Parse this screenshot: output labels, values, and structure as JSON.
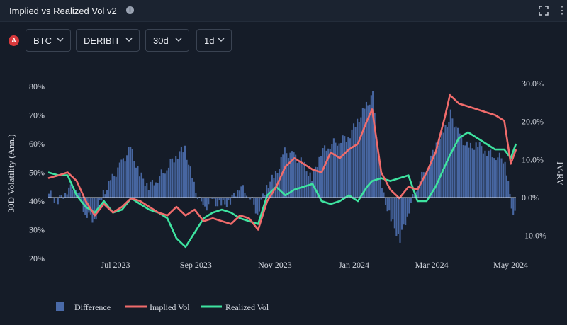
{
  "header": {
    "title": "Implied vs Realized Vol v2",
    "info_icon": "info-icon",
    "expand_icon": "expand-icon",
    "more_icon": "more-vertical-icon"
  },
  "controls": {
    "badge": "A",
    "asset": "BTC",
    "exchange": "DERIBIT",
    "tenor": "30d",
    "interval": "1d"
  },
  "colors": {
    "implied": "#f06b6b",
    "realized": "#3ee3a0",
    "difference": "#4a6aa8",
    "overlap": "#9b8bd0"
  },
  "chart_data": {
    "type": "line",
    "ylabel": "30D Volatility (Ann.)",
    "y2label": "IV-RV",
    "ylim": [
      20,
      80
    ],
    "y_ticks": [
      "20%",
      "30%",
      "40%",
      "50%",
      "60%",
      "70%",
      "80%"
    ],
    "y2lim": [
      -12,
      30
    ],
    "y2_ticks": [
      "-10.0%",
      "0.0%",
      "10.0%",
      "20.0%",
      "30.0%"
    ],
    "x_ticks": [
      "Jul 2023",
      "Sep 2023",
      "Nov 2023",
      "Jan 2024",
      "Mar 2024",
      "May 2024"
    ],
    "x_range": [
      "2023-05-10",
      "2024-05-05"
    ],
    "legend": [
      "Difference",
      "Implied Vol",
      "Realized Vol"
    ],
    "series": [
      {
        "name": "Implied Vol",
        "points": [
          [
            "2023-05-10",
            48
          ],
          [
            "2023-05-18",
            49
          ],
          [
            "2023-05-25",
            50
          ],
          [
            "2023-06-01",
            47
          ],
          [
            "2023-06-08",
            40
          ],
          [
            "2023-06-15",
            35
          ],
          [
            "2023-06-22",
            39
          ],
          [
            "2023-06-29",
            36
          ],
          [
            "2023-07-06",
            38
          ],
          [
            "2023-07-13",
            41
          ],
          [
            "2023-07-20",
            40
          ],
          [
            "2023-07-27",
            38
          ],
          [
            "2023-08-03",
            36
          ],
          [
            "2023-08-10",
            35
          ],
          [
            "2023-08-17",
            38
          ],
          [
            "2023-08-24",
            35
          ],
          [
            "2023-08-31",
            37
          ],
          [
            "2023-09-07",
            33
          ],
          [
            "2023-09-14",
            34
          ],
          [
            "2023-09-21",
            33
          ],
          [
            "2023-09-28",
            32
          ],
          [
            "2023-10-05",
            35
          ],
          [
            "2023-10-12",
            34
          ],
          [
            "2023-10-19",
            30
          ],
          [
            "2023-10-26",
            40
          ],
          [
            "2023-11-02",
            45
          ],
          [
            "2023-11-09",
            52
          ],
          [
            "2023-11-16",
            55
          ],
          [
            "2023-11-23",
            53
          ],
          [
            "2023-11-30",
            51
          ],
          [
            "2023-12-07",
            50
          ],
          [
            "2023-12-14",
            57
          ],
          [
            "2023-12-21",
            55
          ],
          [
            "2023-12-28",
            58
          ],
          [
            "2024-01-04",
            60
          ],
          [
            "2024-01-11",
            68
          ],
          [
            "2024-01-15",
            72
          ],
          [
            "2024-01-22",
            50
          ],
          [
            "2024-01-29",
            44
          ],
          [
            "2024-02-05",
            41
          ],
          [
            "2024-02-12",
            45
          ],
          [
            "2024-02-19",
            44
          ],
          [
            "2024-02-26",
            50
          ],
          [
            "2024-03-04",
            57
          ],
          [
            "2024-03-11",
            69
          ],
          [
            "2024-03-15",
            77
          ],
          [
            "2024-03-22",
            74
          ],
          [
            "2024-03-29",
            73
          ],
          [
            "2024-04-05",
            72
          ],
          [
            "2024-04-12",
            71
          ],
          [
            "2024-04-19",
            70
          ],
          [
            "2024-04-26",
            68
          ],
          [
            "2024-05-01",
            53
          ],
          [
            "2024-05-05",
            58
          ]
        ]
      },
      {
        "name": "Realized Vol",
        "points": [
          [
            "2023-05-10",
            50
          ],
          [
            "2023-05-18",
            49
          ],
          [
            "2023-05-25",
            49
          ],
          [
            "2023-06-01",
            42
          ],
          [
            "2023-06-08",
            38
          ],
          [
            "2023-06-15",
            36
          ],
          [
            "2023-06-22",
            40
          ],
          [
            "2023-06-29",
            36
          ],
          [
            "2023-07-06",
            37
          ],
          [
            "2023-07-13",
            41
          ],
          [
            "2023-07-20",
            39
          ],
          [
            "2023-07-27",
            37
          ],
          [
            "2023-08-03",
            36
          ],
          [
            "2023-08-10",
            34
          ],
          [
            "2023-08-17",
            27
          ],
          [
            "2023-08-24",
            24
          ],
          [
            "2023-08-31",
            29
          ],
          [
            "2023-09-07",
            34
          ],
          [
            "2023-09-14",
            36
          ],
          [
            "2023-09-21",
            37
          ],
          [
            "2023-09-28",
            36
          ],
          [
            "2023-10-05",
            34
          ],
          [
            "2023-10-12",
            33
          ],
          [
            "2023-10-19",
            32
          ],
          [
            "2023-10-26",
            42
          ],
          [
            "2023-11-02",
            45
          ],
          [
            "2023-11-09",
            42
          ],
          [
            "2023-11-16",
            44
          ],
          [
            "2023-11-23",
            45
          ],
          [
            "2023-11-30",
            46
          ],
          [
            "2023-12-07",
            40
          ],
          [
            "2023-12-14",
            39
          ],
          [
            "2023-12-21",
            40
          ],
          [
            "2023-12-28",
            42
          ],
          [
            "2024-01-04",
            40
          ],
          [
            "2024-01-11",
            45
          ],
          [
            "2024-01-15",
            47
          ],
          [
            "2024-01-22",
            48
          ],
          [
            "2024-01-29",
            47
          ],
          [
            "2024-02-05",
            48
          ],
          [
            "2024-02-12",
            49
          ],
          [
            "2024-02-19",
            40
          ],
          [
            "2024-02-26",
            40
          ],
          [
            "2024-03-04",
            45
          ],
          [
            "2024-03-11",
            52
          ],
          [
            "2024-03-15",
            56
          ],
          [
            "2024-03-22",
            62
          ],
          [
            "2024-03-29",
            64
          ],
          [
            "2024-04-05",
            62
          ],
          [
            "2024-04-12",
            60
          ],
          [
            "2024-04-19",
            58
          ],
          [
            "2024-04-26",
            58
          ],
          [
            "2024-05-01",
            55
          ],
          [
            "2024-05-05",
            60
          ]
        ]
      },
      {
        "name": "Difference",
        "points": [
          [
            "2023-05-10",
            1
          ],
          [
            "2023-05-17",
            -1
          ],
          [
            "2023-05-24",
            2
          ],
          [
            "2023-05-31",
            3
          ],
          [
            "2023-06-07",
            -4
          ],
          [
            "2023-06-14",
            -6
          ],
          [
            "2023-06-21",
            1
          ],
          [
            "2023-06-28",
            5
          ],
          [
            "2023-07-05",
            9
          ],
          [
            "2023-07-12",
            13
          ],
          [
            "2023-07-19",
            6
          ],
          [
            "2023-07-26",
            3
          ],
          [
            "2023-08-02",
            5
          ],
          [
            "2023-08-09",
            8
          ],
          [
            "2023-08-16",
            11
          ],
          [
            "2023-08-23",
            13
          ],
          [
            "2023-08-30",
            3
          ],
          [
            "2023-09-06",
            -3
          ],
          [
            "2023-09-13",
            -1
          ],
          [
            "2023-09-20",
            -2
          ],
          [
            "2023-09-27",
            -1
          ],
          [
            "2023-10-04",
            3
          ],
          [
            "2023-10-11",
            1
          ],
          [
            "2023-10-18",
            -4
          ],
          [
            "2023-10-25",
            3
          ],
          [
            "2023-11-01",
            6
          ],
          [
            "2023-11-08",
            12
          ],
          [
            "2023-11-15",
            11
          ],
          [
            "2023-11-22",
            9
          ],
          [
            "2023-11-29",
            5
          ],
          [
            "2023-12-06",
            12
          ],
          [
            "2023-12-13",
            14
          ],
          [
            "2023-12-20",
            15
          ],
          [
            "2023-12-27",
            16
          ],
          [
            "2024-01-03",
            20
          ],
          [
            "2024-01-10",
            24
          ],
          [
            "2024-01-15",
            27
          ],
          [
            "2024-01-22",
            2
          ],
          [
            "2024-01-29",
            -6
          ],
          [
            "2024-02-05",
            -11
          ],
          [
            "2024-02-12",
            -3
          ],
          [
            "2024-02-19",
            4
          ],
          [
            "2024-02-26",
            8
          ],
          [
            "2024-03-04",
            14
          ],
          [
            "2024-03-11",
            18
          ],
          [
            "2024-03-15",
            22
          ],
          [
            "2024-03-22",
            16
          ],
          [
            "2024-03-29",
            13
          ],
          [
            "2024-04-05",
            14
          ],
          [
            "2024-04-12",
            12
          ],
          [
            "2024-04-19",
            11
          ],
          [
            "2024-04-26",
            10
          ],
          [
            "2024-05-01",
            -3
          ],
          [
            "2024-05-05",
            -4
          ]
        ]
      }
    ]
  }
}
